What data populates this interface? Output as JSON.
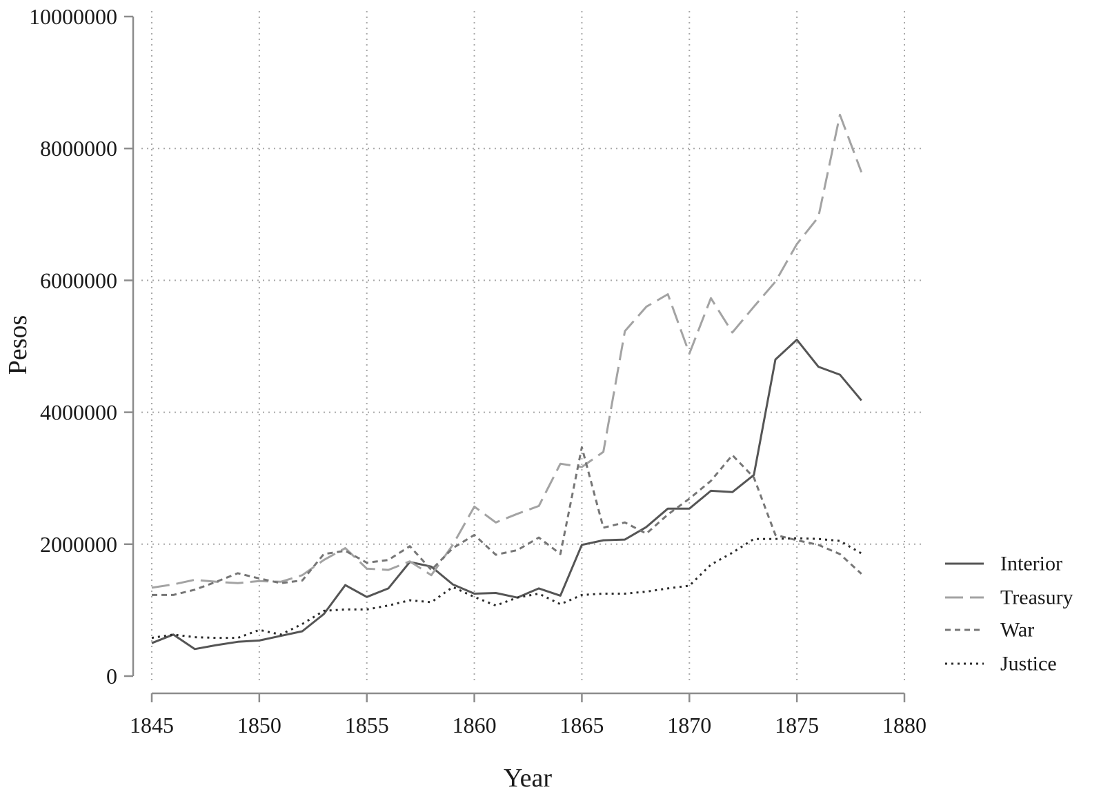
{
  "chart_data": {
    "type": "line",
    "xlabel": "Year",
    "ylabel": "Pesos",
    "xlim": [
      1845,
      1880
    ],
    "ylim": [
      0,
      10000000
    ],
    "xticks": [
      1845,
      1850,
      1855,
      1860,
      1865,
      1870,
      1875,
      1880
    ],
    "yticks": [
      0,
      2000000,
      4000000,
      6000000,
      8000000,
      10000000
    ],
    "grid": true,
    "legend_position": "right",
    "x": [
      1845,
      1846,
      1847,
      1848,
      1849,
      1850,
      1851,
      1852,
      1853,
      1854,
      1855,
      1856,
      1857,
      1858,
      1859,
      1860,
      1861,
      1862,
      1863,
      1864,
      1865,
      1866,
      1867,
      1868,
      1869,
      1870,
      1871,
      1872,
      1873,
      1874,
      1875,
      1876,
      1877,
      1878
    ],
    "series": [
      {
        "name": "Interior",
        "color": "#555555",
        "values": [
          500000,
          630000,
          410000,
          470000,
          520000,
          540000,
          610000,
          680000,
          940000,
          1380000,
          1200000,
          1330000,
          1730000,
          1660000,
          1390000,
          1250000,
          1260000,
          1190000,
          1330000,
          1220000,
          1990000,
          2060000,
          2070000,
          2260000,
          2540000,
          2540000,
          2810000,
          2790000,
          3050000,
          4800000,
          5100000,
          4690000,
          4570000,
          4180000
        ]
      },
      {
        "name": "Treasury",
        "color": "#a3a3a3",
        "values": [
          1340000,
          1390000,
          1460000,
          1430000,
          1410000,
          1440000,
          1430000,
          1530000,
          1760000,
          1940000,
          1630000,
          1610000,
          1740000,
          1530000,
          1990000,
          2570000,
          2330000,
          2460000,
          2580000,
          3220000,
          3170000,
          3400000,
          5230000,
          5600000,
          5790000,
          4890000,
          5730000,
          5210000,
          5600000,
          5980000,
          6550000,
          6960000,
          8510000,
          7640000
        ]
      },
      {
        "name": "War",
        "color": "#767676",
        "values": [
          1230000,
          1230000,
          1310000,
          1430000,
          1560000,
          1480000,
          1410000,
          1450000,
          1850000,
          1900000,
          1720000,
          1760000,
          1970000,
          1610000,
          1940000,
          2140000,
          1840000,
          1910000,
          2100000,
          1850000,
          3470000,
          2250000,
          2330000,
          2160000,
          2450000,
          2690000,
          2960000,
          3350000,
          3010000,
          2140000,
          2060000,
          1990000,
          1850000,
          1550000
        ]
      },
      {
        "name": "Justice",
        "color": "#2b2b2b",
        "values": [
          580000,
          630000,
          590000,
          580000,
          580000,
          700000,
          630000,
          790000,
          990000,
          1010000,
          1010000,
          1070000,
          1150000,
          1120000,
          1350000,
          1200000,
          1070000,
          1190000,
          1250000,
          1090000,
          1230000,
          1250000,
          1250000,
          1280000,
          1330000,
          1370000,
          1690000,
          1870000,
          2080000,
          2080000,
          2090000,
          2080000,
          2050000,
          1860000
        ]
      }
    ]
  }
}
